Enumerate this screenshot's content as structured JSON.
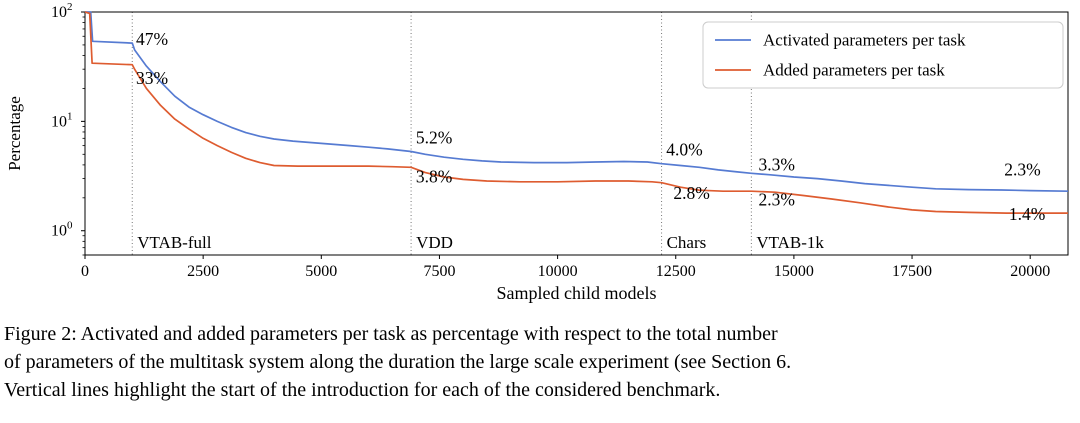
{
  "figure": {
    "caption_lines": [
      "Figure 2: Activated and added parameters per task as percentage with respect to the total number",
      "of parameters of the multitask system along the duration the large scale experiment (see Section 6.",
      "Vertical lines highlight the start of the introduction for each of the considered benchmark."
    ]
  },
  "chart_data": {
    "type": "line",
    "title": "",
    "xlabel": "Sampled child models",
    "ylabel": "Percentage",
    "x_axis_scale": "linear",
    "y_axis_scale": "log",
    "xlim": [
      0,
      20800
    ],
    "ylim": [
      0.6,
      100
    ],
    "xticks": [
      0,
      2500,
      5000,
      7500,
      10000,
      12500,
      15000,
      17500,
      20000
    ],
    "ytick_exponents": [
      0,
      1,
      2
    ],
    "grid": false,
    "legend_position": "upper right",
    "colors": {
      "activated": "#567bd2",
      "added": "#de5c30",
      "vline": "#777777",
      "legend_border": "#cccccc"
    },
    "series": [
      {
        "name": "Activated parameters per task",
        "color": "#567bd2",
        "points": [
          [
            0,
            100
          ],
          [
            120,
            100
          ],
          [
            160,
            54
          ],
          [
            1000,
            52
          ],
          [
            1050,
            45
          ],
          [
            1300,
            32
          ],
          [
            1600,
            23
          ],
          [
            1900,
            17
          ],
          [
            2200,
            13.5
          ],
          [
            2500,
            11.5
          ],
          [
            2800,
            10
          ],
          [
            3100,
            8.8
          ],
          [
            3400,
            7.9
          ],
          [
            3700,
            7.3
          ],
          [
            4000,
            6.9
          ],
          [
            4400,
            6.6
          ],
          [
            4800,
            6.4
          ],
          [
            5200,
            6.2
          ],
          [
            5600,
            6.0
          ],
          [
            6000,
            5.8
          ],
          [
            6400,
            5.6
          ],
          [
            6900,
            5.3
          ],
          [
            7200,
            5.0
          ],
          [
            7600,
            4.7
          ],
          [
            8000,
            4.5
          ],
          [
            8400,
            4.35
          ],
          [
            8800,
            4.25
          ],
          [
            9500,
            4.2
          ],
          [
            10200,
            4.2
          ],
          [
            10800,
            4.25
          ],
          [
            11400,
            4.3
          ],
          [
            11900,
            4.25
          ],
          [
            12200,
            4.1
          ],
          [
            12600,
            3.95
          ],
          [
            13000,
            3.8
          ],
          [
            13400,
            3.6
          ],
          [
            13800,
            3.45
          ],
          [
            14100,
            3.35
          ],
          [
            14500,
            3.25
          ],
          [
            15000,
            3.1
          ],
          [
            15500,
            3.0
          ],
          [
            16000,
            2.85
          ],
          [
            16500,
            2.7
          ],
          [
            17000,
            2.6
          ],
          [
            17500,
            2.5
          ],
          [
            18000,
            2.42
          ],
          [
            18700,
            2.38
          ],
          [
            19400,
            2.36
          ],
          [
            20000,
            2.33
          ],
          [
            20800,
            2.3
          ]
        ]
      },
      {
        "name": "Added parameters per task",
        "color": "#de5c30",
        "points": [
          [
            0,
            100
          ],
          [
            100,
            97
          ],
          [
            150,
            34
          ],
          [
            1000,
            33
          ],
          [
            1050,
            30
          ],
          [
            1300,
            20
          ],
          [
            1600,
            14
          ],
          [
            1900,
            10.5
          ],
          [
            2200,
            8.5
          ],
          [
            2500,
            7
          ],
          [
            2800,
            6
          ],
          [
            3100,
            5.2
          ],
          [
            3400,
            4.6
          ],
          [
            3700,
            4.2
          ],
          [
            4000,
            3.95
          ],
          [
            4500,
            3.9
          ],
          [
            5200,
            3.9
          ],
          [
            6000,
            3.9
          ],
          [
            6500,
            3.85
          ],
          [
            6900,
            3.8
          ],
          [
            7200,
            3.4
          ],
          [
            7600,
            3.1
          ],
          [
            8000,
            2.95
          ],
          [
            8500,
            2.85
          ],
          [
            9200,
            2.8
          ],
          [
            10000,
            2.8
          ],
          [
            10800,
            2.85
          ],
          [
            11500,
            2.85
          ],
          [
            12000,
            2.8
          ],
          [
            12200,
            2.75
          ],
          [
            12600,
            2.5
          ],
          [
            13000,
            2.35
          ],
          [
            13500,
            2.3
          ],
          [
            14100,
            2.3
          ],
          [
            14600,
            2.25
          ],
          [
            15200,
            2.1
          ],
          [
            15800,
            1.95
          ],
          [
            16400,
            1.8
          ],
          [
            17000,
            1.65
          ],
          [
            17500,
            1.55
          ],
          [
            18000,
            1.5
          ],
          [
            18700,
            1.47
          ],
          [
            19500,
            1.45
          ],
          [
            20800,
            1.45
          ]
        ]
      }
    ],
    "vlines": [
      {
        "x": 1000,
        "label": "VTAB-full"
      },
      {
        "x": 6900,
        "label": "VDD"
      },
      {
        "x": 12200,
        "label": "Chars"
      },
      {
        "x": 14100,
        "label": "VTAB-1k"
      }
    ],
    "annotations": [
      {
        "text": "47%",
        "x": 1080,
        "y": 50
      },
      {
        "text": "33%",
        "x": 1080,
        "y": 22
      },
      {
        "text": "5.2%",
        "x": 7000,
        "y": 6.3
      },
      {
        "text": "3.8%",
        "x": 7000,
        "y": 2.75
      },
      {
        "text": "4.0%",
        "x": 12300,
        "y": 4.9
      },
      {
        "text": "2.8%",
        "x": 12450,
        "y": 1.95
      },
      {
        "text": "3.3%",
        "x": 14250,
        "y": 3.55
      },
      {
        "text": "2.3%",
        "x": 14250,
        "y": 1.7
      },
      {
        "text": "2.3%",
        "x": 19450,
        "y": 3.2
      },
      {
        "text": "1.4%",
        "x": 19550,
        "y": 1.25
      }
    ]
  }
}
